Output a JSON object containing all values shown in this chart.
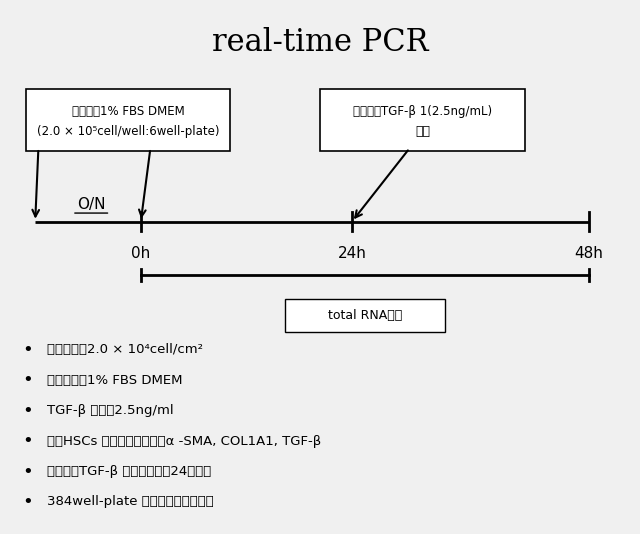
{
  "title": "real-time PCR",
  "title_fontsize": 22,
  "fig_bg": "#f0f0f0",
  "box1_text_line1": "細胞播種1% FBS DMEM",
  "box1_text_line2": "(2.0 × 10⁵cell/well:6well-plate)",
  "box2_text_line1": "化合物・TGF-β 1(2.5ng/mL)",
  "box2_text_line2": "添加",
  "timeline_labels": [
    "0h",
    "24h",
    "48h"
  ],
  "on_label": "O/N",
  "rna_label": "total RNA回収",
  "bullet_items": [
    "細胞密度：2.0 × 10⁴cell/cm²",
    "細胞播種：1% FBS DMEM",
    "TGF-β 濃度：2.5ng/ml",
    "検討HSCs 活性化マーカー：α -SMA, COL1A1, TGF-β",
    "化合物・TGF-β 添加：同時・24時間毎",
    "384well-plate を用いて解析を行う"
  ]
}
